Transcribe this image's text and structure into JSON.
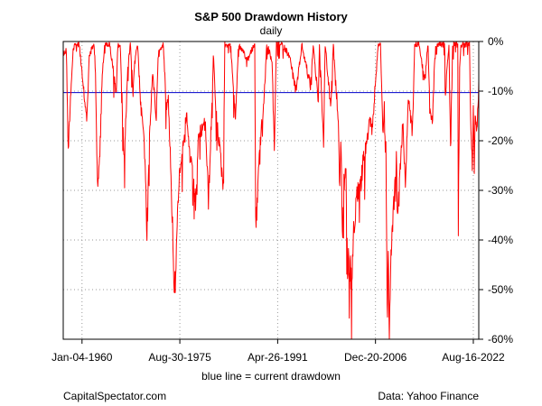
{
  "chart_data": {
    "type": "line",
    "title": "S&P 500 Drawdown History",
    "subtitle": "daily",
    "xlabel": "blue line = current drawdown",
    "ylabel": "",
    "x_ticks": [
      "Jan-04-1960",
      "Aug-30-1975",
      "Apr-26-1991",
      "Dec-20-2006",
      "Aug-16-2022"
    ],
    "y_ticks": [
      "0%",
      "-10%",
      "-20%",
      "-30%",
      "-40%",
      "-50%",
      "-60%"
    ],
    "xlim": [
      "1957-01-01",
      "2023-06-30"
    ],
    "ylim": [
      -60,
      0
    ],
    "y_axis_side": "right",
    "grid": true,
    "reference_line": {
      "value": -10.3,
      "color": "#0000cc"
    },
    "series": [
      {
        "color": "#ff0000",
        "points": [
          [
            "1957-01-01",
            -2
          ],
          [
            "1957-07-01",
            -1
          ],
          [
            "1957-10-22",
            -20
          ],
          [
            "1958-03-01",
            -10
          ],
          [
            "1958-08-01",
            -1
          ],
          [
            "1959-01-01",
            0
          ],
          [
            "1959-08-03",
            0
          ],
          [
            "1960-03-01",
            -8
          ],
          [
            "1960-10-25",
            -14
          ],
          [
            "1961-03-01",
            -2
          ],
          [
            "1961-12-12",
            0
          ],
          [
            "1962-03-01",
            -5
          ],
          [
            "1962-06-26",
            -28
          ],
          [
            "1962-10-23",
            -22
          ],
          [
            "1963-04-01",
            -5
          ],
          [
            "1963-09-01",
            0
          ],
          [
            "1964-06-01",
            0
          ],
          [
            "1965-06-28",
            -9
          ],
          [
            "1965-10-01",
            0
          ],
          [
            "1966-02-09",
            0
          ],
          [
            "1966-10-07",
            -22
          ],
          [
            "1967-05-01",
            -5
          ],
          [
            "1967-09-25",
            0
          ],
          [
            "1968-03-05",
            -9
          ],
          [
            "1968-07-01",
            -2
          ],
          [
            "1968-11-29",
            0
          ],
          [
            "1969-06-01",
            -12
          ],
          [
            "1969-12-17",
            -18
          ],
          [
            "1970-05-26",
            -36
          ],
          [
            "1970-10-01",
            -20
          ],
          [
            "1971-04-28",
            -5
          ],
          [
            "1971-11-23",
            -14
          ],
          [
            "1972-03-06",
            -2
          ],
          [
            "1973-01-11",
            0
          ],
          [
            "1973-07-01",
            -12
          ],
          [
            "1973-10-26",
            -10
          ],
          [
            "1974-04-01",
            -25
          ],
          [
            "1974-07-01",
            -35
          ],
          [
            "1974-10-03",
            -48
          ],
          [
            "1974-12-06",
            -45
          ],
          [
            "1975-07-15",
            -25
          ],
          [
            "1976-09-21",
            -13
          ],
          [
            "1977-03-01",
            -20
          ],
          [
            "1978-03-06",
            -30
          ],
          [
            "1978-09-12",
            -17
          ],
          [
            "1979-10-05",
            -15
          ],
          [
            "1980-03-27",
            -30
          ],
          [
            "1980-11-28",
            -8
          ],
          [
            "1981-01-06",
            -2
          ],
          [
            "1981-06-01",
            -12
          ],
          [
            "1982-08-12",
            -27
          ],
          [
            "1982-11-09",
            0
          ],
          [
            "1983-10-10",
            0
          ],
          [
            "1984-07-24",
            -14
          ],
          [
            "1985-01-21",
            0
          ],
          [
            "1986-06-01",
            -3
          ],
          [
            "1987-08-25",
            0
          ],
          [
            "1987-10-19",
            -33
          ],
          [
            "1987-12-04",
            -33
          ],
          [
            "1988-06-01",
            -20
          ],
          [
            "1989-03-01",
            -10
          ],
          [
            "1989-07-26",
            0
          ],
          [
            "1990-06-01",
            -3
          ],
          [
            "1990-10-11",
            -20
          ],
          [
            "1991-02-13",
            0
          ],
          [
            "1992-01-01",
            0
          ],
          [
            "1993-03-01",
            -2
          ],
          [
            "1994-04-04",
            -9
          ],
          [
            "1994-12-01",
            -3
          ],
          [
            "1995-03-01",
            0
          ],
          [
            "1996-07-24",
            -8
          ],
          [
            "1997-01-01",
            0
          ],
          [
            "1997-10-27",
            -11
          ],
          [
            "1998-01-01",
            0
          ],
          [
            "1998-08-31",
            -19
          ],
          [
            "1998-12-01",
            0
          ],
          [
            "1999-10-15",
            -12
          ],
          [
            "2000-03-24",
            0
          ],
          [
            "2000-07-01",
            -6
          ],
          [
            "2000-12-20",
            -13
          ],
          [
            "2001-04-04",
            -27
          ],
          [
            "2001-06-01",
            -18
          ],
          [
            "2001-09-21",
            -37
          ],
          [
            "2001-12-01",
            -26
          ],
          [
            "2002-04-01",
            -25
          ],
          [
            "2002-07-23",
            -46
          ],
          [
            "2002-08-22",
            -37
          ],
          [
            "2002-10-09",
            -49
          ],
          [
            "2002-12-01",
            -42
          ],
          [
            "2003-03-11",
            -48
          ],
          [
            "2003-06-01",
            -36
          ],
          [
            "2003-12-31",
            -28
          ],
          [
            "2004-08-12",
            -27
          ],
          [
            "2005-01-01",
            -22
          ],
          [
            "2005-06-01",
            -20
          ],
          [
            "2006-01-01",
            -15
          ],
          [
            "2006-06-13",
            -16
          ],
          [
            "2006-12-01",
            -8
          ],
          [
            "2007-05-30",
            0
          ],
          [
            "2007-10-09",
            0
          ],
          [
            "2008-03-10",
            -18
          ],
          [
            "2008-05-19",
            -10
          ],
          [
            "2008-07-15",
            -22
          ],
          [
            "2008-08-20",
            -17
          ],
          [
            "2008-10-10",
            -42
          ],
          [
            "2008-11-20",
            -52
          ],
          [
            "2009-01-06",
            -40
          ],
          [
            "2009-03-09",
            -57
          ],
          [
            "2009-06-12",
            -40
          ],
          [
            "2009-12-31",
            -28
          ],
          [
            "2010-04-23",
            -22
          ],
          [
            "2010-07-02",
            -34
          ],
          [
            "2011-04-29",
            -15
          ],
          [
            "2011-10-03",
            -26
          ],
          [
            "2012-04-02",
            -10
          ],
          [
            "2012-11-15",
            -17
          ],
          [
            "2013-03-28",
            0
          ],
          [
            "2014-01-01",
            0
          ],
          [
            "2014-10-15",
            -7
          ],
          [
            "2015-05-21",
            0
          ],
          [
            "2015-08-25",
            -12
          ],
          [
            "2016-02-11",
            -14
          ],
          [
            "2016-07-11",
            0
          ],
          [
            "2017-06-01",
            0
          ],
          [
            "2018-01-26",
            0
          ],
          [
            "2018-02-08",
            -10
          ],
          [
            "2018-09-20",
            0
          ],
          [
            "2018-12-24",
            -20
          ],
          [
            "2019-04-23",
            0
          ],
          [
            "2020-02-19",
            0
          ],
          [
            "2020-03-23",
            -34
          ],
          [
            "2020-06-08",
            -5
          ],
          [
            "2020-08-18",
            0
          ],
          [
            "2021-06-01",
            0
          ],
          [
            "2022-01-03",
            0
          ],
          [
            "2022-03-08",
            -13
          ],
          [
            "2022-06-16",
            -24
          ],
          [
            "2022-08-16",
            -11
          ],
          [
            "2022-10-12",
            -25
          ],
          [
            "2022-12-01",
            -14
          ],
          [
            "2023-03-13",
            -17
          ],
          [
            "2023-06-30",
            -8
          ]
        ]
      }
    ]
  },
  "footer": {
    "left": "CapitalSpectator.com",
    "right": "Data: Yahoo Finance"
  }
}
